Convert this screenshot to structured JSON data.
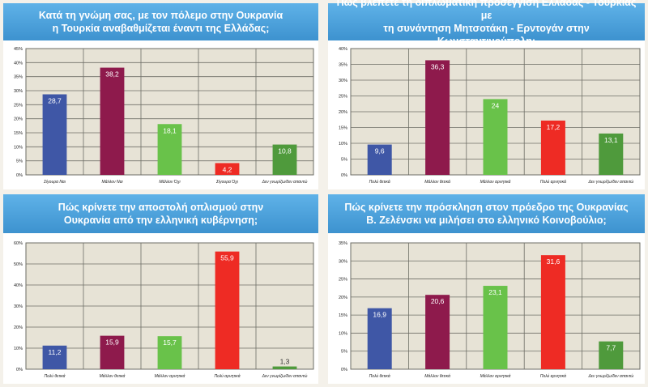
{
  "colors": {
    "blue": "#3f57a6",
    "maroon": "#8e1a4c",
    "light_green": "#69c24a",
    "red": "#ee2b24",
    "dark_green": "#4f9a3c",
    "plot_bg": "#e7e3d6",
    "grid": "#6e6e66",
    "title_bg": "#4aa3dc"
  },
  "chart_data": [
    {
      "type": "bar",
      "title_lines": [
        "Κατά τη γνώμη σας, με τον πόλεμο στην Ουκρανία",
        "η Τουρκία αναβαθμίζεται έναντι της Ελλάδας;"
      ],
      "categories": [
        "Σίγουρα Ναι",
        "Μάλλον Ναι",
        "Μάλλον Όχι",
        "Σίγουρα Όχι",
        "Δεν γνωρίζω/δεν απαντώ"
      ],
      "values": [
        28.7,
        38.2,
        18.1,
        4.2,
        10.8
      ],
      "value_labels": [
        "28,7",
        "38,2",
        "18,1",
        "4,2",
        "10,8"
      ],
      "bar_colors": [
        "#3f57a6",
        "#8e1a4c",
        "#69c24a",
        "#ee2b24",
        "#4f9a3c"
      ],
      "yticks": [
        "0%",
        "5%",
        "10%",
        "15%",
        "20%",
        "25%",
        "30%",
        "35%",
        "40%",
        "45%"
      ],
      "ylim": [
        0,
        45
      ]
    },
    {
      "type": "bar",
      "title_lines": [
        "Πώς βλέπετε τη διπλωματική προσέγγιση Ελλάδας - Τουρκίας με",
        "τη συνάντηση Μητσοτάκη - Ερντογάν στην Κωνσταντινούπολη;"
      ],
      "categories": [
        "Πολύ θετικά",
        "Μάλλον θετικά",
        "Μάλλον αρνητικά",
        "Πολύ αρνητικά",
        "Δεν γνωρίζω/δεν απαντώ"
      ],
      "values": [
        9.6,
        36.3,
        24,
        17.2,
        13.1
      ],
      "value_labels": [
        "9,6",
        "36,3",
        "24",
        "17,2",
        "13,1"
      ],
      "bar_colors": [
        "#3f57a6",
        "#8e1a4c",
        "#69c24a",
        "#ee2b24",
        "#4f9a3c"
      ],
      "yticks": [
        "0%",
        "5%",
        "10%",
        "15%",
        "20%",
        "25%",
        "30%",
        "35%",
        "40%"
      ],
      "ylim": [
        0,
        40
      ]
    },
    {
      "type": "bar",
      "title_lines": [
        "Πώς κρίνετε την αποστολή οπλισμού στην",
        "Ουκρανία από την ελληνική κυβέρνηση;"
      ],
      "categories": [
        "Πολύ θετικά",
        "Μάλλον θετικά",
        "Μάλλον αρνητικά",
        "Πολύ αρνητικά",
        "Δεν γνωρίζω/δεν απαντώ"
      ],
      "values": [
        11.2,
        15.9,
        15.7,
        55.9,
        1.3
      ],
      "value_labels": [
        "11,2",
        "15,9",
        "15,7",
        "55,9",
        "1,3"
      ],
      "bar_colors": [
        "#3f57a6",
        "#8e1a4c",
        "#69c24a",
        "#ee2b24",
        "#4f9a3c"
      ],
      "yticks": [
        "0%",
        "10%",
        "20%",
        "30%",
        "40%",
        "50%",
        "60%"
      ],
      "ylim": [
        0,
        60
      ]
    },
    {
      "type": "bar",
      "title_lines": [
        "Πώς κρίνετε την πρόσκληση στον πρόεδρο της Ουκρανίας",
        "Β. Ζελένσκι να μιλήσει στο ελληνικό Κοινοβούλιο;"
      ],
      "categories": [
        "Πολύ θετικά",
        "Μάλλον θετικά",
        "Μάλλον αρνητικά",
        "Πολύ αρνητικά",
        "Δεν γνωρίζω/δεν απαντώ"
      ],
      "values": [
        16.9,
        20.6,
        23.1,
        31.6,
        7.7
      ],
      "value_labels": [
        "16,9",
        "20,6",
        "23,1",
        "31,6",
        "7,7"
      ],
      "bar_colors": [
        "#3f57a6",
        "#8e1a4c",
        "#69c24a",
        "#ee2b24",
        "#4f9a3c"
      ],
      "yticks": [
        "0%",
        "5%",
        "10%",
        "15%",
        "20%",
        "25%",
        "30%",
        "35%"
      ],
      "ylim": [
        0,
        35
      ]
    }
  ]
}
